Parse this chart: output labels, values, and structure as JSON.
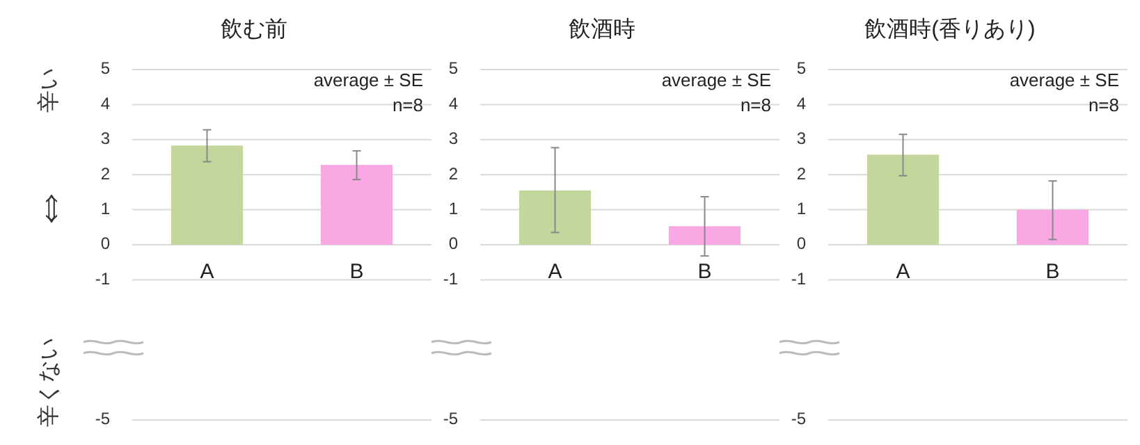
{
  "chart_data": [
    {
      "type": "bar",
      "title": "飲む前",
      "ylabel": "辛くない ⇔ 辛い",
      "categories": [
        "A",
        "B"
      ],
      "values": [
        2.83,
        2.28
      ],
      "colors": [
        "#c3d69b",
        "#f9a8e4"
      ],
      "errors": [
        [
          2.37,
          3.28
        ],
        [
          1.86,
          2.68
        ]
      ],
      "ylim": [
        -5,
        5
      ],
      "yticks": [
        -5,
        -1,
        0,
        1,
        2,
        3,
        4,
        5
      ],
      "grid": "y",
      "annotations": [
        "average ± SE",
        "n=8"
      ]
    },
    {
      "type": "bar",
      "title": "飲酒時",
      "categories": [
        "A",
        "B"
      ],
      "values": [
        1.55,
        0.53
      ],
      "colors": [
        "#c3d69b",
        "#f9a8e4"
      ],
      "errors": [
        [
          0.35,
          2.77
        ],
        [
          -0.32,
          1.37
        ]
      ],
      "ylim": [
        -5,
        5
      ],
      "yticks": [
        -5,
        -1,
        0,
        1,
        2,
        3,
        4,
        5
      ],
      "grid": "y",
      "annotations": [
        "average ± SE",
        "n=8"
      ]
    },
    {
      "type": "bar",
      "title": "飲酒時(香りあり)",
      "categories": [
        "A",
        "B"
      ],
      "values": [
        2.57,
        1.0
      ],
      "colors": [
        "#c3d69b",
        "#f9a8e4"
      ],
      "errors": [
        [
          1.97,
          3.15
        ],
        [
          0.15,
          1.82
        ]
      ],
      "ylim": [
        -5,
        5
      ],
      "yticks": [
        -5,
        -1,
        0,
        1,
        2,
        3,
        4,
        5
      ],
      "grid": "y",
      "annotations": [
        "average ± SE",
        "n=8"
      ]
    }
  ]
}
